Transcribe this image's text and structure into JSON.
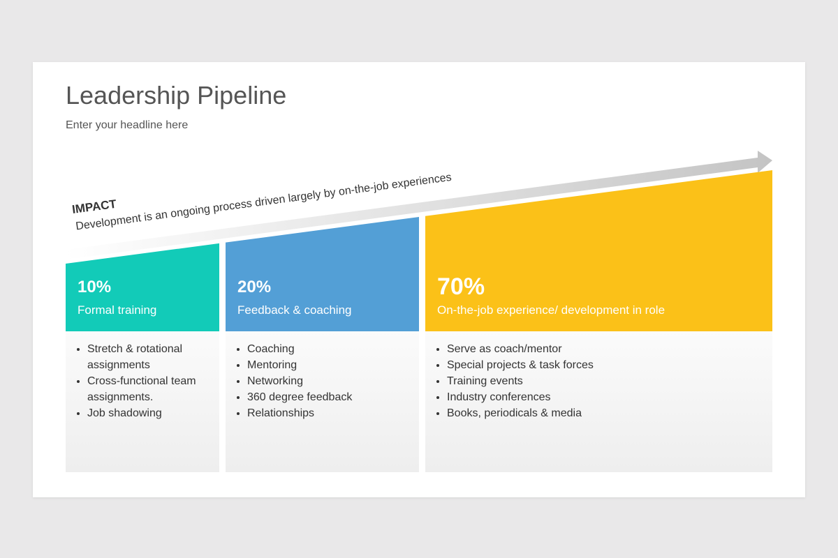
{
  "header": {
    "title": "Leadership Pipeline",
    "subtitle": "Enter your headline here"
  },
  "impact": {
    "label": "IMPACT",
    "text": "Development is an ongoing process driven largely by on-the-job experiences"
  },
  "columns": [
    {
      "percent": "10%",
      "label": "Formal training",
      "color": "#12cbb8",
      "bullets": [
        "Stretch & rotational assignments",
        "Cross-functional team assignments.",
        "Job shadowing"
      ]
    },
    {
      "percent": "20%",
      "label": "Feedback & coaching",
      "color": "#539fd6",
      "bullets": [
        "Coaching",
        "Mentoring",
        "Networking",
        "360 degree feedback",
        "Relationships"
      ]
    },
    {
      "percent": "70%",
      "label": "On-the-job experience/ development in role",
      "color": "#fbc118",
      "bullets": [
        "Serve as coach/mentor",
        "Special projects & task forces",
        "Training events",
        "Industry conferences",
        "Books, periodicals & media"
      ]
    }
  ]
}
